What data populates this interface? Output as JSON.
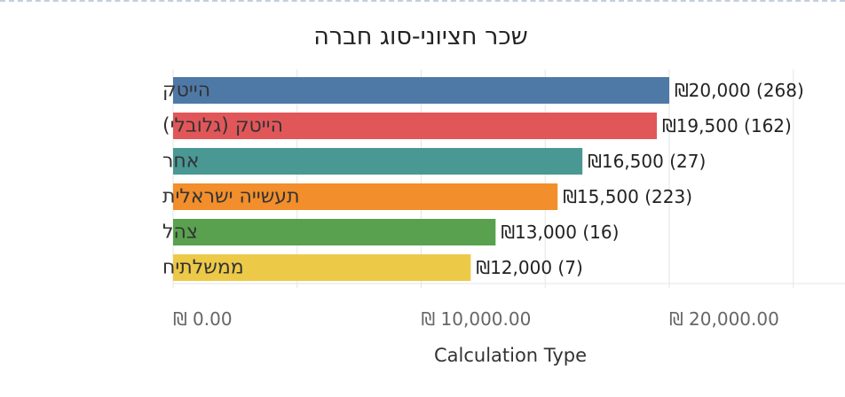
{
  "chart_data": {
    "type": "bar",
    "orientation": "horizontal",
    "title": "שכר חציוני-סוג חברה",
    "xlabel": "Calculation Type",
    "ylabel": "",
    "categories": [
      "הייטק",
      "הייטק (גלובלי)",
      "אחר",
      "תעשייה ישראלית",
      "צהל",
      "ממשלתיח"
    ],
    "values": [
      20000,
      19500,
      16500,
      15500,
      13000,
      12000
    ],
    "counts": [
      268,
      162,
      27,
      223,
      16,
      7
    ],
    "data_labels": [
      "₪20,000 (268)",
      "₪19,500 (162)",
      "₪16,500 (27)",
      "₪15,500 (223)",
      "₪13,000 (16)",
      "₪12,000 (7)"
    ],
    "colors": [
      "#4e79a7",
      "#e15759",
      "#499894",
      "#f28e2b",
      "#59a14f",
      "#edc948"
    ],
    "xticks": [
      0,
      10000,
      20000
    ],
    "xtick_labels": [
      "₪ 0.00",
      "₪ 10,000.00",
      "₪ 20,000.00"
    ],
    "xlim": [
      0,
      27000
    ],
    "grid": true,
    "legend": "none"
  }
}
